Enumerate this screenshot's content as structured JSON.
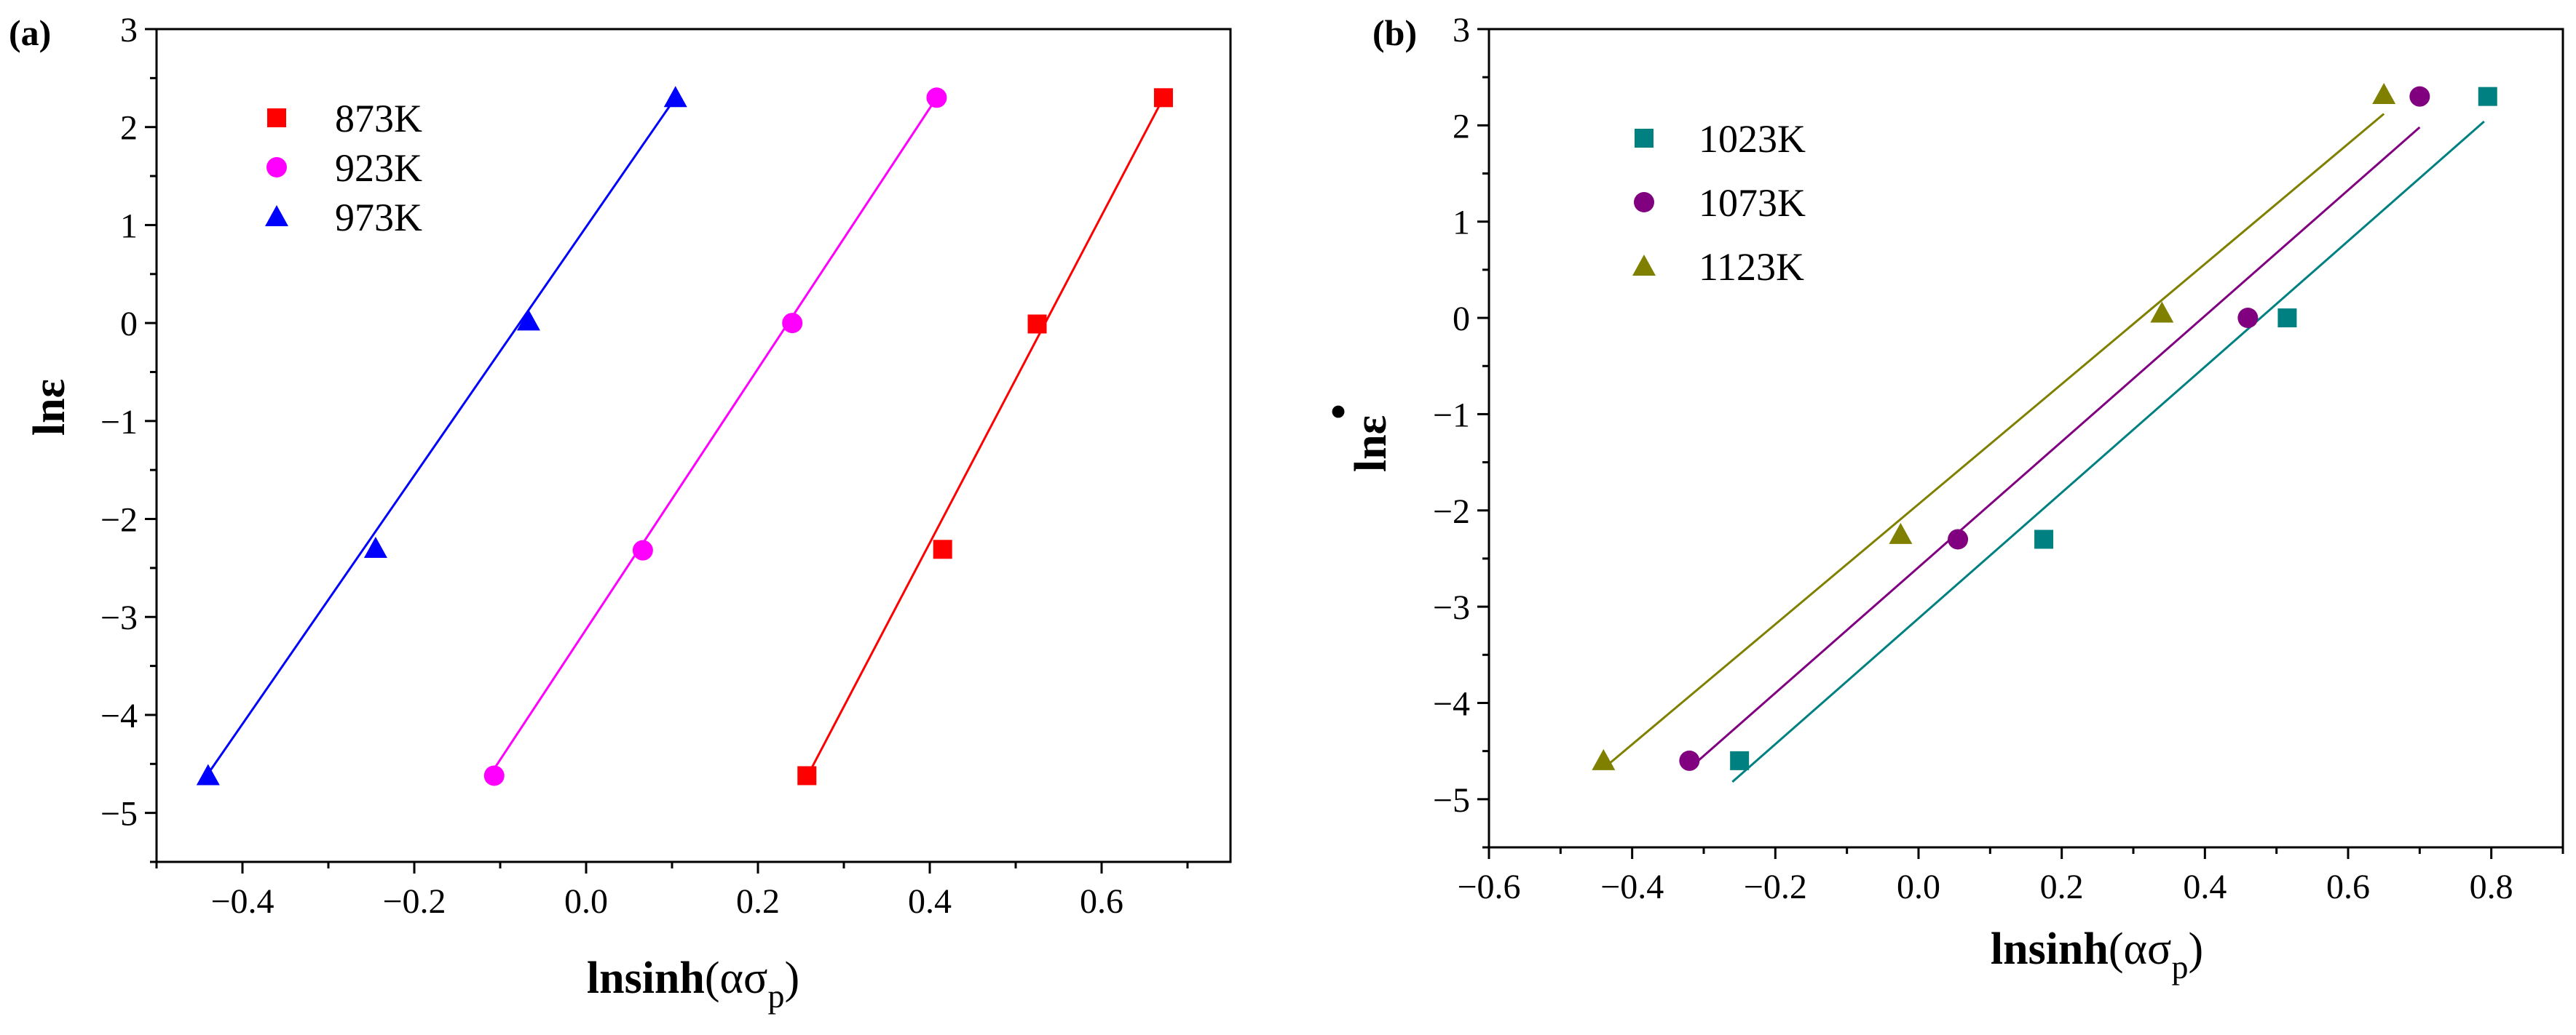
{
  "chart_data": [
    {
      "type": "scatter",
      "panel_label": "(a)",
      "xlabel_main": "lnsinh",
      "xlabel_paren": "(ασ",
      "xlabel_sub": "p",
      "xlabel_close": ")",
      "ylabel_main": "ln",
      "ylabel_sym": "ε",
      "xlim": [
        -0.5,
        0.75
      ],
      "ylim": [
        -5.5,
        3
      ],
      "xticks": [
        -0.4,
        -0.2,
        0.0,
        0.2,
        0.4,
        0.6
      ],
      "xtick_labels": [
        "−0.4",
        "−0.2",
        "0.0",
        "0.2",
        "0.4",
        "0.6"
      ],
      "yticks": [
        -5,
        -4,
        -3,
        -2,
        -1,
        0,
        1,
        2,
        3
      ],
      "ytick_labels": [
        "−5",
        "−4",
        "−3",
        "−2",
        "−1",
        "0",
        "1",
        "2",
        "3"
      ],
      "legend_position": "top-left",
      "series": [
        {
          "name": "873K",
          "color": "#ff0000",
          "marker": "square",
          "x": [
            0.257,
            0.415,
            0.525,
            0.672
          ],
          "y": [
            -4.62,
            -2.31,
            -0.01,
            2.3
          ],
          "fit": {
            "x": [
              0.262,
              0.672
            ],
            "y": [
              -4.55,
              2.3
            ]
          }
        },
        {
          "name": "923K",
          "color": "#ff00ff",
          "marker": "circle",
          "x": [
            -0.107,
            0.066,
            0.24,
            0.408
          ],
          "y": [
            -4.62,
            -2.32,
            0.0,
            2.3
          ],
          "fit": {
            "x": [
              -0.107,
              0.408
            ],
            "y": [
              -4.55,
              2.3
            ]
          }
        },
        {
          "name": "973K",
          "color": "#0000ff",
          "marker": "triangle",
          "x": [
            -0.44,
            -0.245,
            -0.067,
            0.104
          ],
          "y": [
            -4.62,
            -2.3,
            0.02,
            2.3
          ],
          "fit": {
            "x": [
              -0.44,
              0.104
            ],
            "y": [
              -4.6,
              2.3
            ]
          }
        }
      ]
    },
    {
      "type": "scatter",
      "panel_label": "(b)",
      "xlabel_main": "lnsinh",
      "xlabel_paren": "(ασ",
      "xlabel_sub": "p",
      "xlabel_close": ")",
      "ylabel_main": "ln",
      "ylabel_sym": "ε",
      "ylabel_dot": "•",
      "xlim": [
        -0.6,
        0.9
      ],
      "ylim": [
        -5.5,
        3
      ],
      "xticks": [
        -0.6,
        -0.4,
        -0.2,
        0.0,
        0.2,
        0.4,
        0.6,
        0.8
      ],
      "xtick_labels": [
        "−0.6",
        "−0.4",
        "−0.2",
        "0.0",
        "0.2",
        "0.4",
        "0.6",
        "0.8"
      ],
      "yticks": [
        -5,
        -4,
        -3,
        -2,
        -1,
        0,
        1,
        2,
        3
      ],
      "ytick_labels": [
        "−5",
        "−4",
        "−3",
        "−2",
        "−1",
        "0",
        "1",
        "2",
        "3"
      ],
      "legend_position": "top-left",
      "series": [
        {
          "name": "1023K",
          "color": "#008080",
          "marker": "square",
          "x": [
            -0.25,
            0.175,
            0.515,
            0.795
          ],
          "y": [
            -4.6,
            -2.3,
            0.0,
            2.3
          ],
          "fit": {
            "x": [
              -0.26,
              0.79
            ],
            "y": [
              -4.82,
              2.04
            ]
          }
        },
        {
          "name": "1073K",
          "color": "#800080",
          "marker": "circle",
          "x": [
            -0.32,
            0.055,
            0.46,
            0.7
          ],
          "y": [
            -4.6,
            -2.3,
            0.0,
            2.3
          ],
          "fit": {
            "x": [
              -0.32,
              0.7
            ],
            "y": [
              -4.68,
              1.98
            ]
          }
        },
        {
          "name": "1123K",
          "color": "#808000",
          "marker": "triangle",
          "x": [
            -0.44,
            -0.025,
            0.34,
            0.65
          ],
          "y": [
            -4.6,
            -2.25,
            0.05,
            2.32
          ],
          "fit": {
            "x": [
              -0.44,
              0.65
            ],
            "y": [
              -4.68,
              2.12
            ]
          }
        }
      ]
    }
  ]
}
